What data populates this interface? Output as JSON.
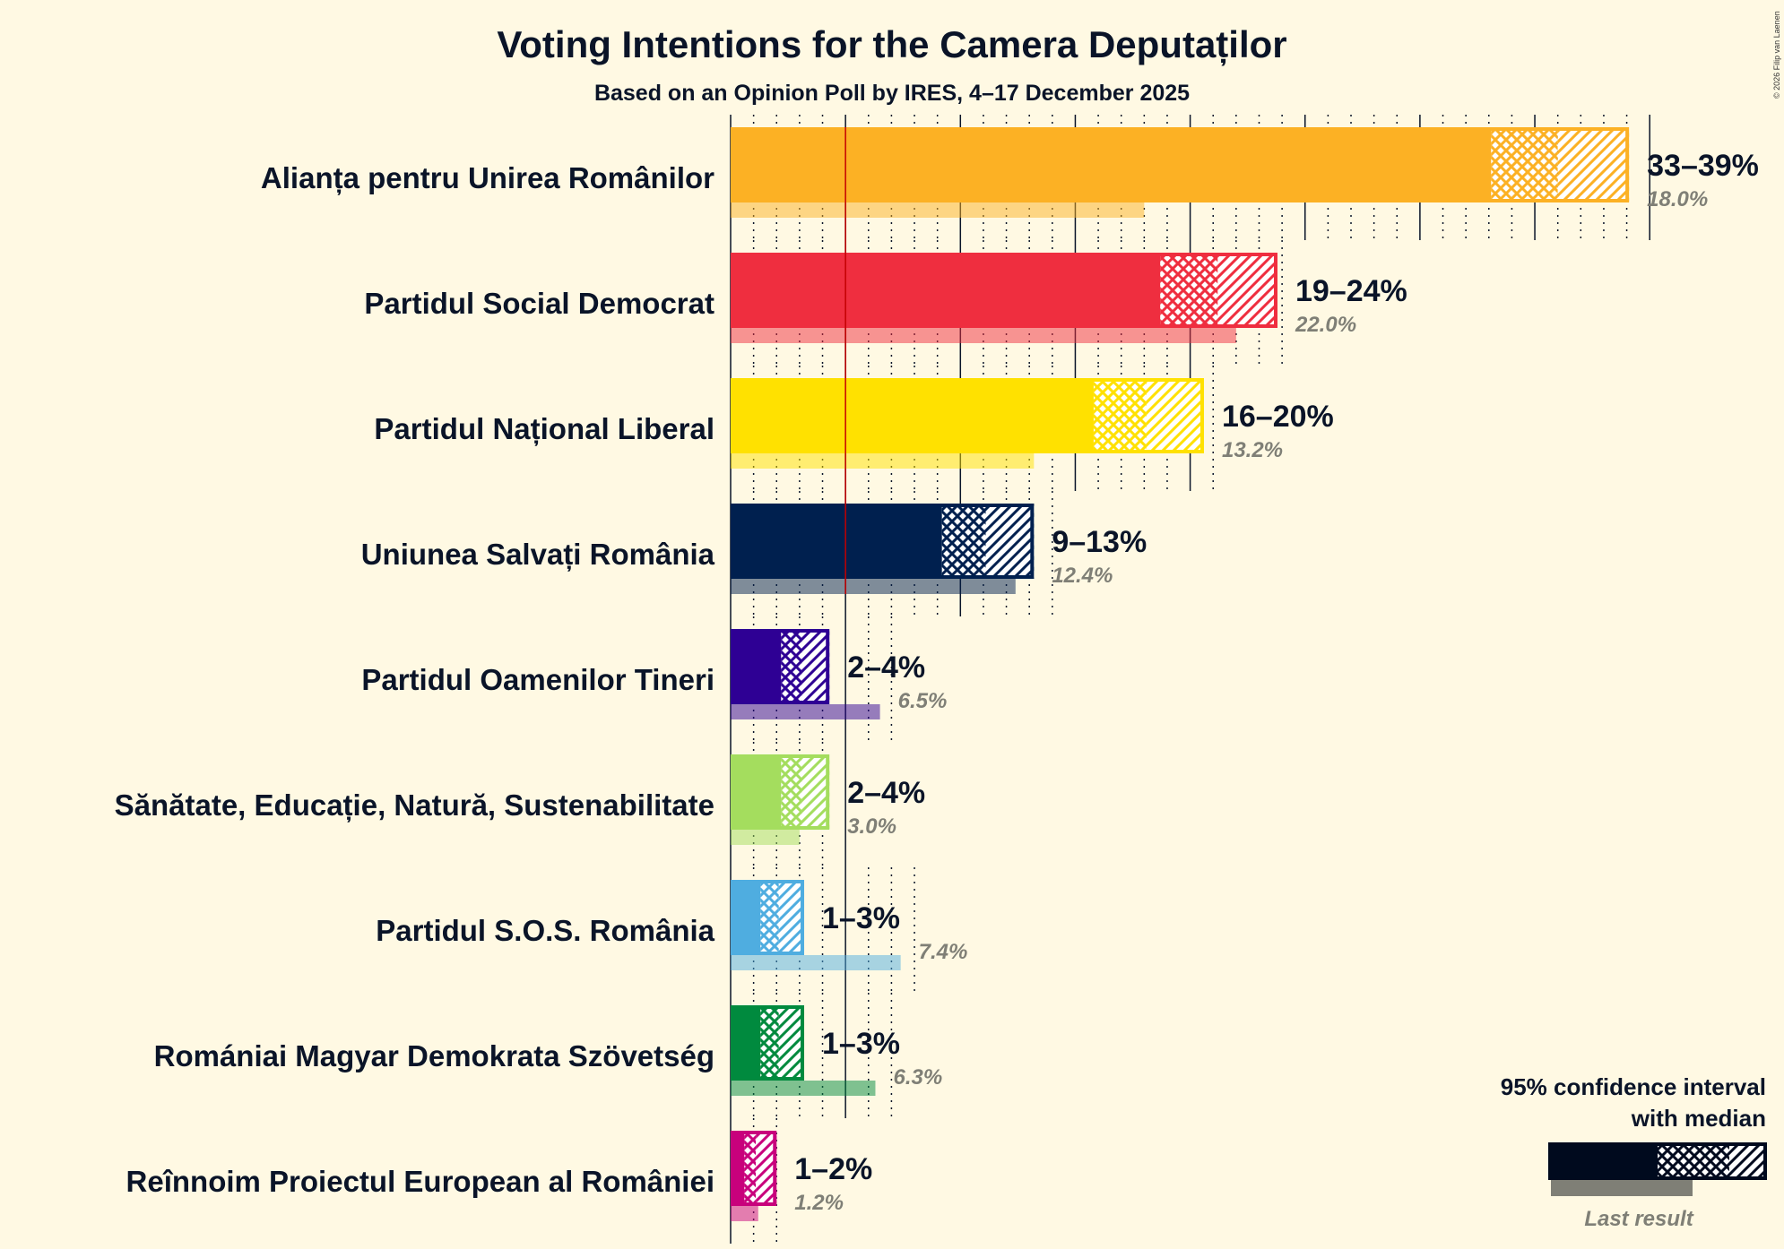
{
  "chart_data": {
    "type": "bar",
    "title": "Voting Intentions for the Camera Deputaților",
    "subtitle": "Based on an Opinion Poll by IRES, 4–17 December 2025",
    "copyright": "© 2026 Filip van Laenen",
    "xlim": [
      0,
      40
    ],
    "threshold": 5,
    "major_gridline_step": 5,
    "minor_gridline_step": 1,
    "legend": {
      "line1": "95% confidence interval",
      "line2": "with median",
      "last_result": "Last result",
      "placement": "bottom-right"
    },
    "parties": [
      {
        "name": "Alianța pentru Unirea Românilor",
        "low": 33.1,
        "median": 36.0,
        "high": 39.1,
        "range_label": "33–39%",
        "last": 18.0,
        "last_label": "18.0%",
        "color": "#FCB124"
      },
      {
        "name": "Partidul Social Democrat",
        "low": 18.7,
        "median": 21.2,
        "high": 23.8,
        "range_label": "19–24%",
        "last": 22.0,
        "last_label": "22.0%",
        "color": "#EF2E3F"
      },
      {
        "name": "Partidul Național Liberal",
        "low": 15.8,
        "median": 18.1,
        "high": 20.6,
        "range_label": "16–20%",
        "last": 13.2,
        "last_label": "13.2%",
        "color": "#FFE100"
      },
      {
        "name": "Uniunea Salvați România",
        "low": 9.2,
        "median": 11.1,
        "high": 13.2,
        "range_label": "9–13%",
        "last": 12.4,
        "last_label": "12.4%",
        "color": "#00204F"
      },
      {
        "name": "Partidul Oamenilor Tineri",
        "low": 2.2,
        "median": 3.1,
        "high": 4.3,
        "range_label": "2–4%",
        "last": 6.5,
        "last_label": "6.5%",
        "color": "#2E0094"
      },
      {
        "name": "Sănătate, Educație, Natură, Sustenabilitate",
        "low": 2.2,
        "median": 3.1,
        "high": 4.3,
        "range_label": "2–4%",
        "last": 3.0,
        "last_label": "3.0%",
        "color": "#A4DD5E"
      },
      {
        "name": "Partidul S.O.S. România",
        "low": 1.3,
        "median": 2.1,
        "high": 3.2,
        "range_label": "1–3%",
        "last": 7.4,
        "last_label": "7.4%",
        "color": "#4FADE0"
      },
      {
        "name": "Romániai Magyar Demokrata Szövetség",
        "low": 1.3,
        "median": 2.1,
        "high": 3.2,
        "range_label": "1–3%",
        "last": 6.3,
        "last_label": "6.3%",
        "color": "#008A3E"
      },
      {
        "name": "Reînnoim Proiectul European al României",
        "low": 0.6,
        "median": 1.1,
        "high": 2.0,
        "range_label": "1–2%",
        "last": 1.2,
        "last_label": "1.2%",
        "color": "#C8017C"
      }
    ]
  }
}
